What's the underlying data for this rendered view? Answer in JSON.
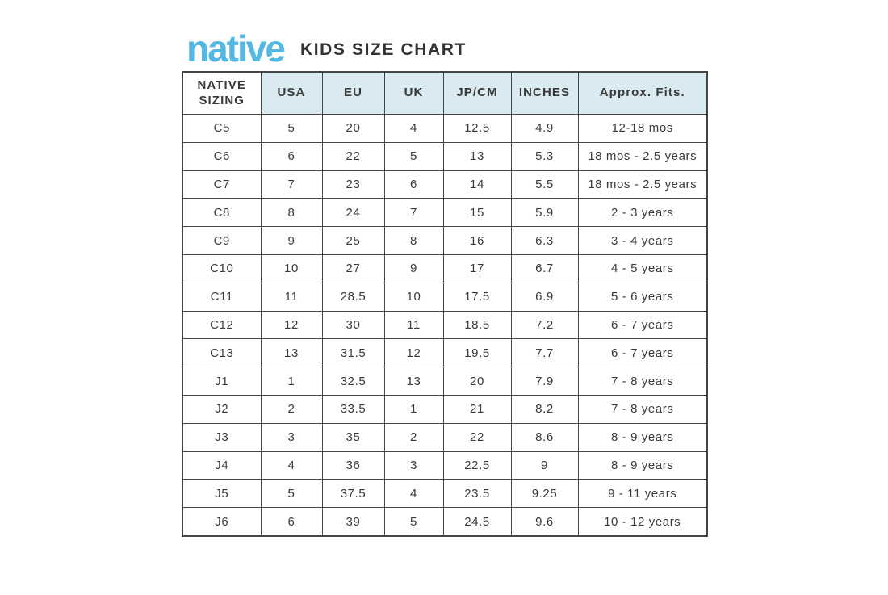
{
  "header": {
    "logo_text": "native",
    "title": "KIDS SIZE CHART"
  },
  "colors": {
    "logo_blue": "#54b8e2",
    "table_header_bg": "#d9eaf0",
    "border": "#454545",
    "text": "#3a3a3a"
  },
  "chart_data": {
    "type": "table",
    "title": "native KIDS SIZE CHART",
    "columns": [
      "NATIVE SIZING",
      "USA",
      "EU",
      "UK",
      "JP/CM",
      "INCHES",
      "Approx. Fits."
    ],
    "rows": [
      [
        "C5",
        "5",
        "20",
        "4",
        "12.5",
        "4.9",
        "12-18 mos"
      ],
      [
        "C6",
        "6",
        "22",
        "5",
        "13",
        "5.3",
        "18 mos - 2.5 years"
      ],
      [
        "C7",
        "7",
        "23",
        "6",
        "14",
        "5.5",
        "18 mos - 2.5 years"
      ],
      [
        "C8",
        "8",
        "24",
        "7",
        "15",
        "5.9",
        "2 - 3 years"
      ],
      [
        "C9",
        "9",
        "25",
        "8",
        "16",
        "6.3",
        "3 - 4 years"
      ],
      [
        "C10",
        "10",
        "27",
        "9",
        "17",
        "6.7",
        "4 - 5 years"
      ],
      [
        "C11",
        "11",
        "28.5",
        "10",
        "17.5",
        "6.9",
        "5 - 6 years"
      ],
      [
        "C12",
        "12",
        "30",
        "11",
        "18.5",
        "7.2",
        "6 - 7 years"
      ],
      [
        "C13",
        "13",
        "31.5",
        "12",
        "19.5",
        "7.7",
        "6 - 7 years"
      ],
      [
        "J1",
        "1",
        "32.5",
        "13",
        "20",
        "7.9",
        "7 - 8 years"
      ],
      [
        "J2",
        "2",
        "33.5",
        "1",
        "21",
        "8.2",
        "7 - 8 years"
      ],
      [
        "J3",
        "3",
        "35",
        "2",
        "22",
        "8.6",
        "8 - 9 years"
      ],
      [
        "J4",
        "4",
        "36",
        "3",
        "22.5",
        "9",
        "8 - 9 years"
      ],
      [
        "J5",
        "5",
        "37.5",
        "4",
        "23.5",
        "9.25",
        "9 - 11 years"
      ],
      [
        "J6",
        "6",
        "39",
        "5",
        "24.5",
        "9.6",
        "10 - 12 years"
      ]
    ]
  }
}
